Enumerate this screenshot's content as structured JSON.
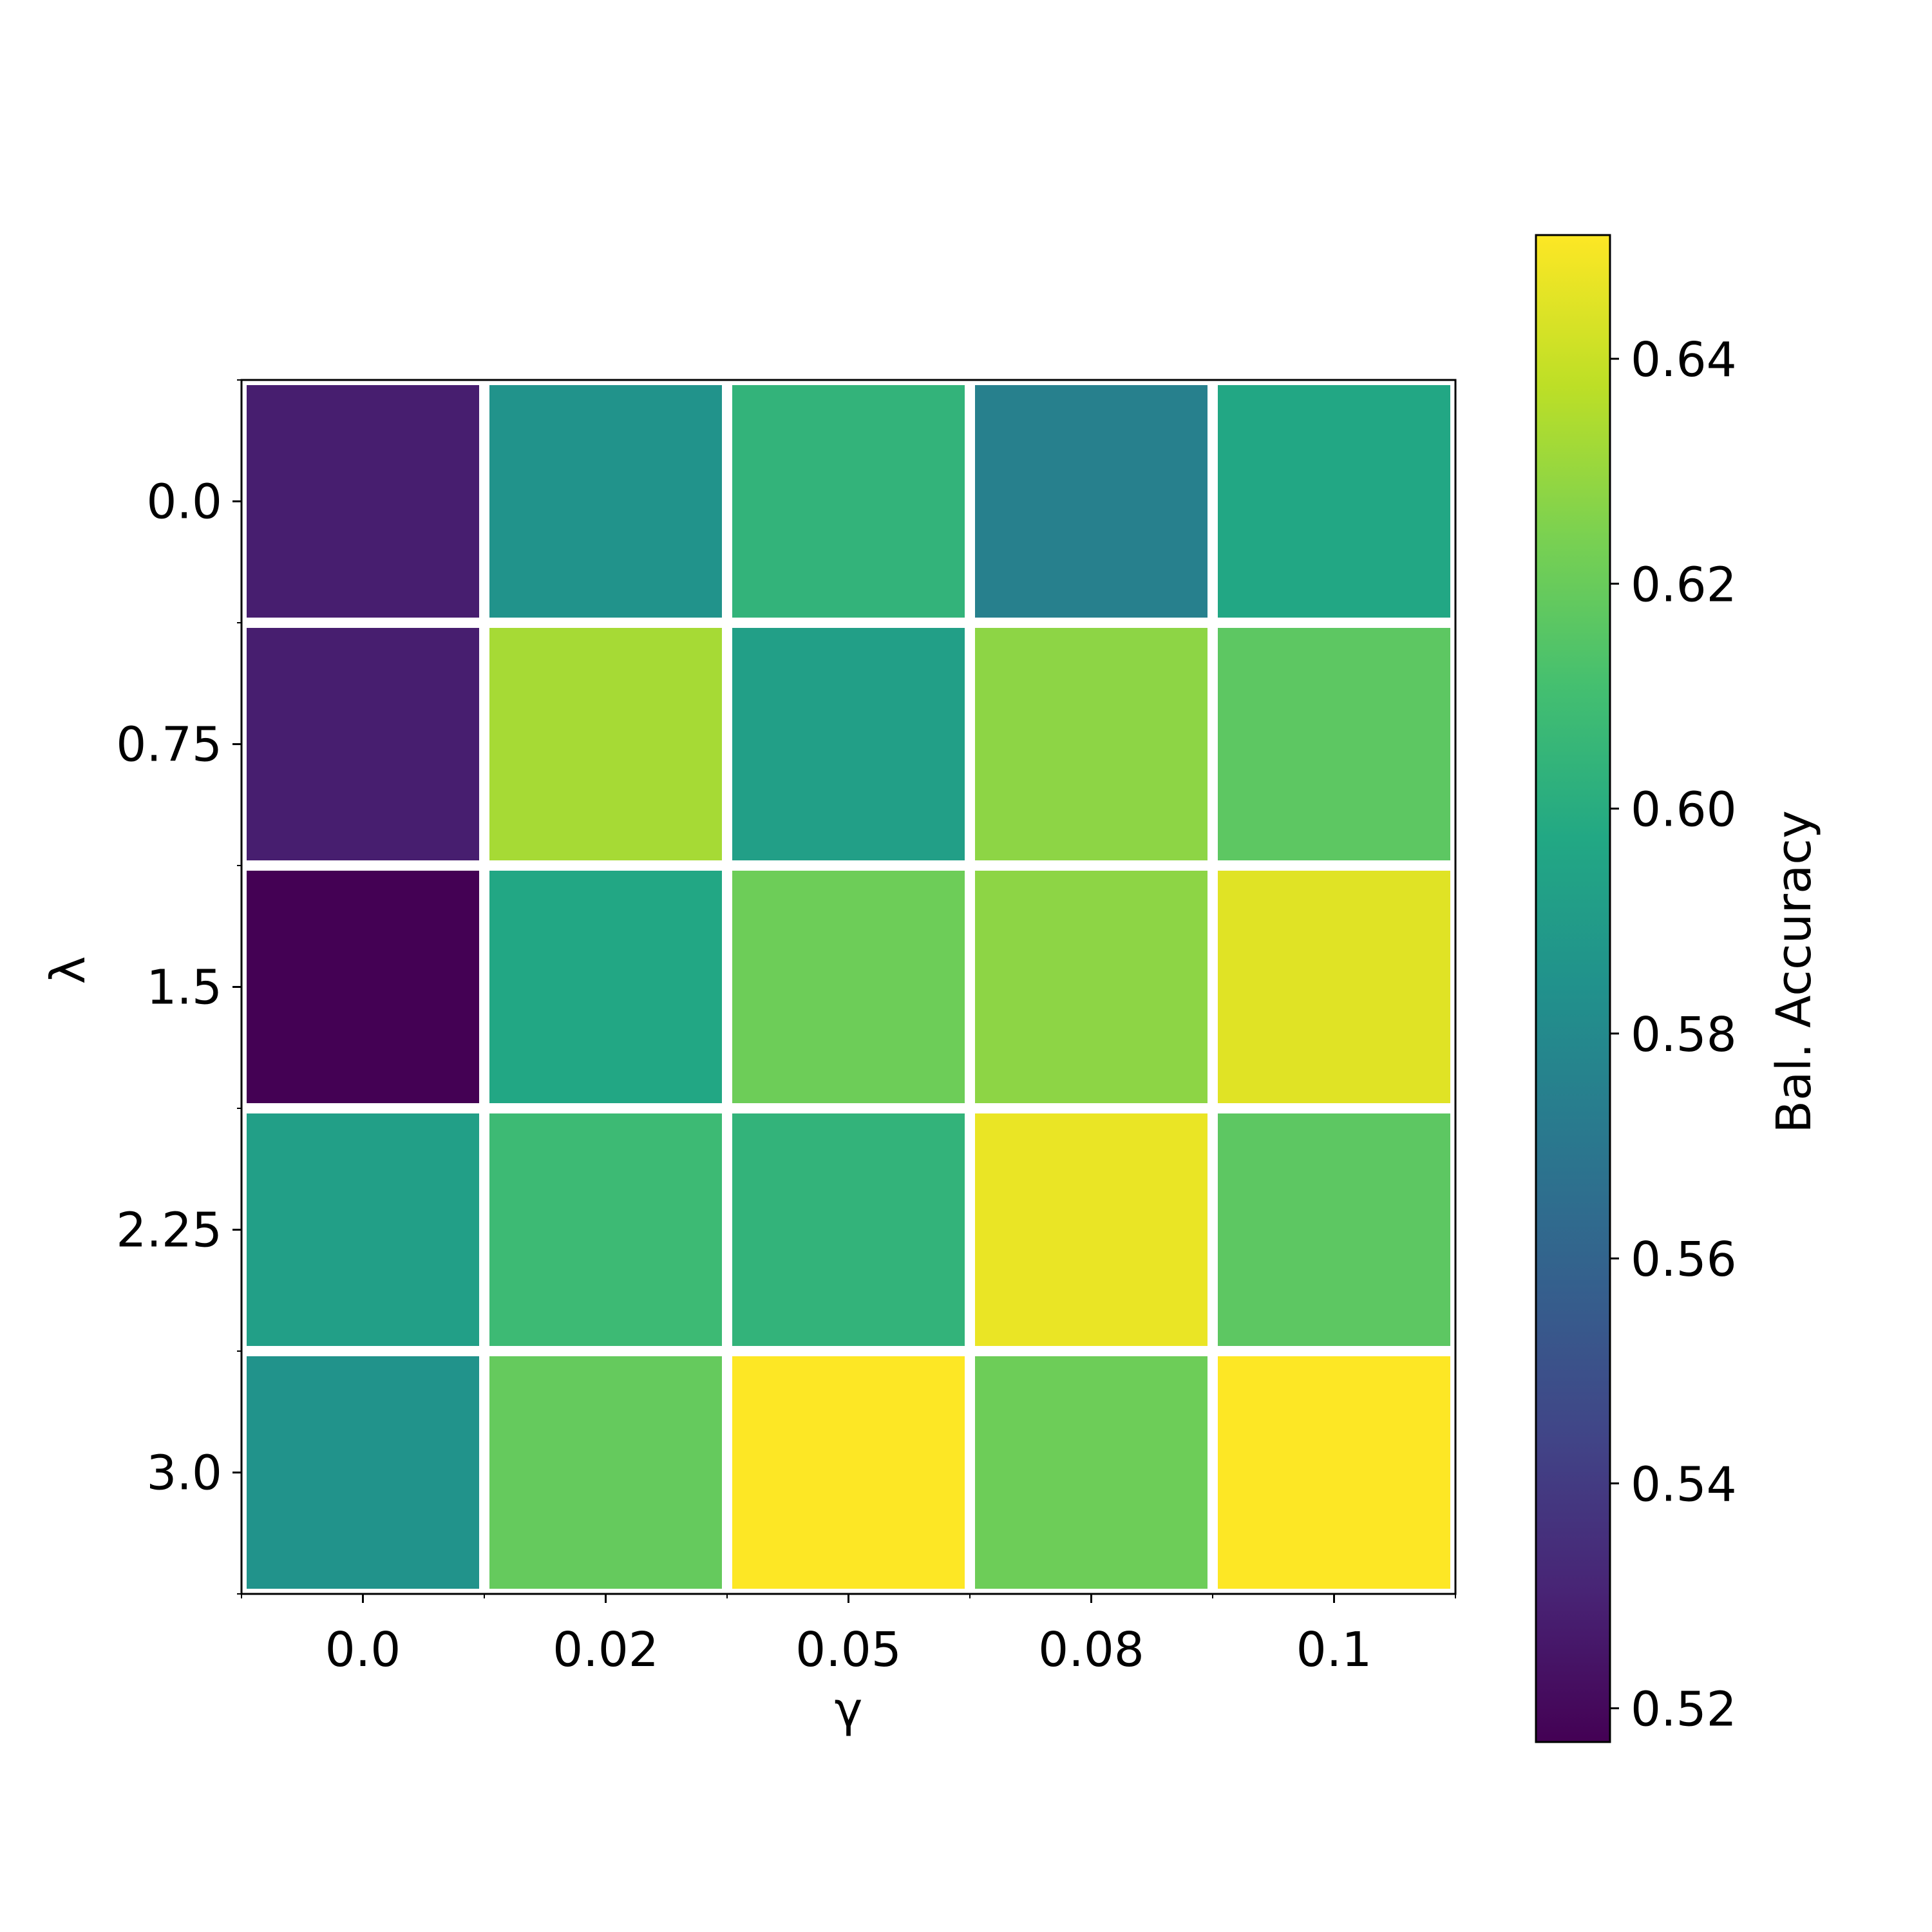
{
  "chart_data": {
    "type": "heatmap",
    "xlabel": "γ",
    "ylabel": "λ",
    "x_categories": [
      "0.0",
      "0.02",
      "0.05",
      "0.08",
      "0.1"
    ],
    "y_categories": [
      "0.0",
      "0.75",
      "1.5",
      "2.25",
      "3.0"
    ],
    "values": [
      [
        0.528,
        0.585,
        0.604,
        0.575,
        0.597
      ],
      [
        0.528,
        0.633,
        0.592,
        0.628,
        0.617
      ],
      [
        0.517,
        0.597,
        0.621,
        0.628,
        0.645
      ],
      [
        0.592,
        0.608,
        0.604,
        0.647,
        0.617
      ],
      [
        0.585,
        0.619,
        0.651,
        0.621,
        0.651
      ]
    ],
    "colorbar": {
      "label": "Bal. Accuracy",
      "range": [
        0.517,
        0.651
      ],
      "ticks": [
        0.52,
        0.54,
        0.56,
        0.58,
        0.6,
        0.62,
        0.64
      ],
      "tick_labels": [
        "0.52",
        "0.54",
        "0.56",
        "0.58",
        "0.60",
        "0.62",
        "0.64"
      ],
      "colormap": "viridis"
    },
    "grid": false,
    "cell_separator_color": "#ffffff"
  }
}
